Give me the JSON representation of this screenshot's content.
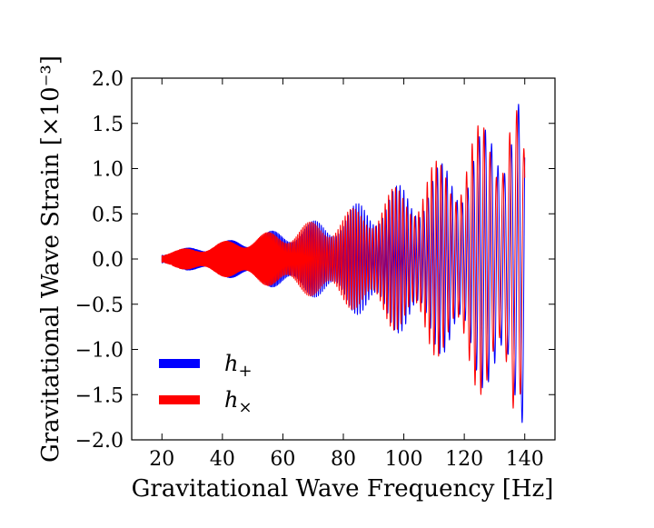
{
  "chart_data": {
    "type": "line",
    "xlabel": "Gravitational Wave Frequency [Hz]",
    "ylabel": "Gravitational Wave Strain [×10⁻³]",
    "xlim": [
      10,
      150
    ],
    "ylim": [
      -2.0,
      2.0
    ],
    "x_ticks": [
      20,
      40,
      60,
      80,
      100,
      120,
      140
    ],
    "x_tick_labels": [
      "20",
      "40",
      "60",
      "80",
      "100",
      "120",
      "140"
    ],
    "y_ticks": [
      2.0,
      1.5,
      1.0,
      0.5,
      0.0,
      -0.5,
      -1.0,
      -1.5,
      -2.0
    ],
    "y_tick_labels": [
      "2.0",
      "1.5",
      "1.0",
      "0.5",
      "0.0",
      "−0.5",
      "−1.0",
      "−1.5",
      "−2.0"
    ],
    "grid": false,
    "legend_position": "lower-left",
    "series": [
      {
        "name": "h+",
        "legend_base": "h",
        "legend_sub": "+",
        "color": "#0000ff",
        "x": [
          20,
          30,
          40,
          50,
          60,
          70,
          80,
          86,
          90,
          95,
          100,
          104,
          108,
          112,
          116,
          120,
          124,
          128,
          132,
          136,
          138,
          140
        ],
        "envelope": [
          0.08,
          0.13,
          0.19,
          0.26,
          0.34,
          0.42,
          0.52,
          0.65,
          0.72,
          0.78,
          0.84,
          0.9,
          0.95,
          1.05,
          1.15,
          1.25,
          1.35,
          1.5,
          1.85,
          1.95,
          1.9,
          1.8
        ]
      },
      {
        "name": "h×",
        "legend_base": "h",
        "legend_sub": "×",
        "color": "#ff0000",
        "x": [
          20,
          30,
          40,
          50,
          60,
          70,
          80,
          86,
          90,
          95,
          100,
          104,
          108,
          112,
          116,
          120,
          124,
          128,
          132,
          136,
          138,
          140
        ],
        "envelope": [
          0.07,
          0.13,
          0.19,
          0.26,
          0.33,
          0.42,
          0.52,
          0.6,
          0.68,
          0.76,
          0.84,
          0.95,
          1.05,
          1.1,
          1.2,
          1.35,
          1.45,
          1.65,
          1.75,
          1.95,
          1.6,
          1.2
        ]
      }
    ]
  }
}
